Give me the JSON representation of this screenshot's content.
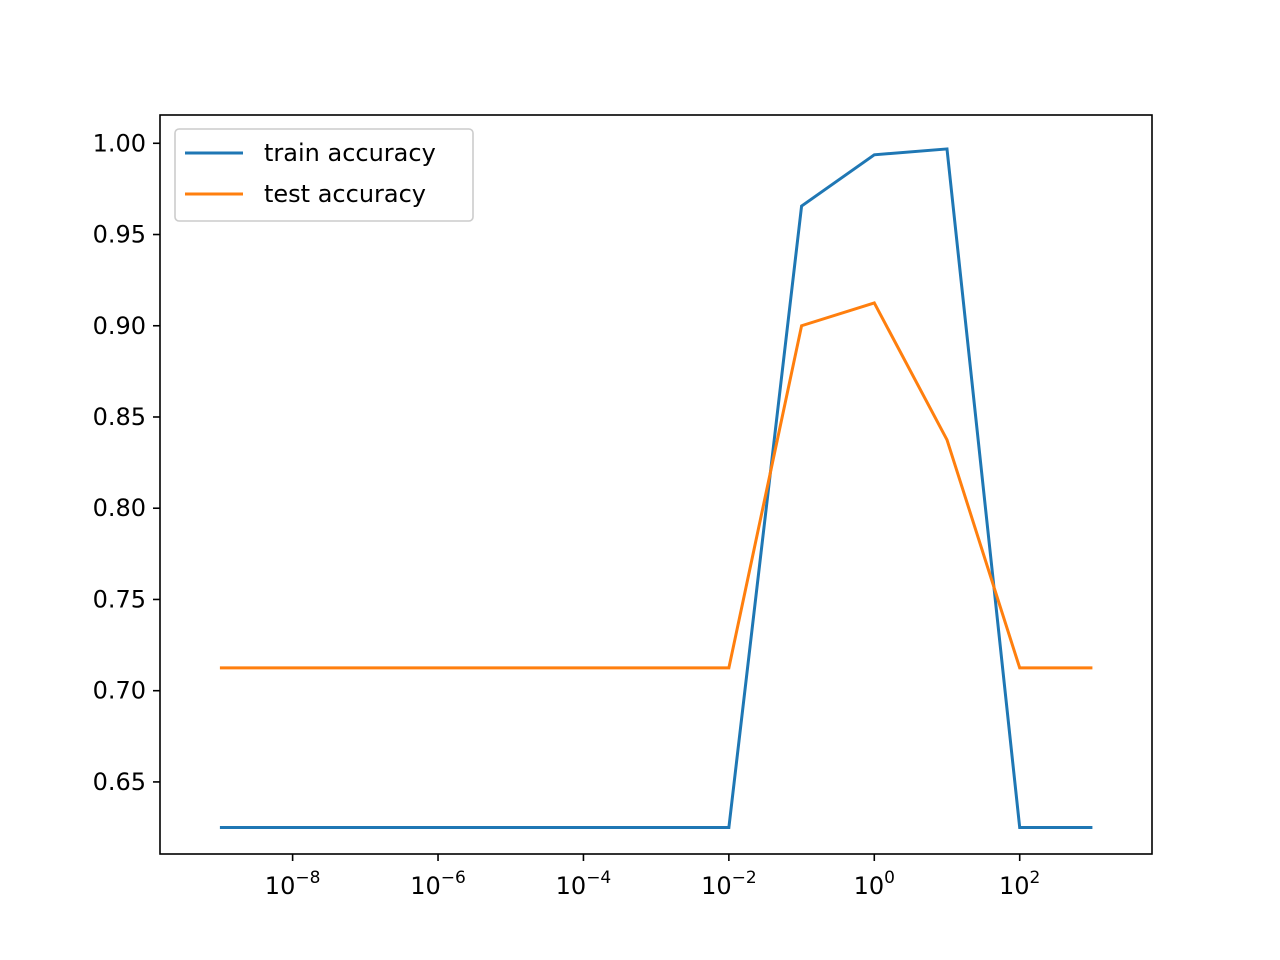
{
  "chart_data": {
    "type": "line",
    "x_scale": "log",
    "x": [
      1e-09,
      1e-08,
      1e-07,
      1e-06,
      1e-05,
      0.0001,
      0.001,
      0.01,
      0.1,
      1,
      10,
      100,
      1000
    ],
    "xlim": [
      1.5e-10,
      6600.0
    ],
    "ylim": [
      0.6105,
      1.0155
    ],
    "x_ticks": [
      {
        "value": 1e-08,
        "base": "10",
        "exp": "−8"
      },
      {
        "value": 1e-06,
        "base": "10",
        "exp": "−6"
      },
      {
        "value": 0.0001,
        "base": "10",
        "exp": "−4"
      },
      {
        "value": 0.01,
        "base": "10",
        "exp": "−2"
      },
      {
        "value": 1,
        "base": "10",
        "exp": "0"
      },
      {
        "value": 100,
        "base": "10",
        "exp": "2"
      }
    ],
    "y_ticks": [
      {
        "value": 0.65,
        "label": "0.65"
      },
      {
        "value": 0.7,
        "label": "0.70"
      },
      {
        "value": 0.75,
        "label": "0.75"
      },
      {
        "value": 0.8,
        "label": "0.80"
      },
      {
        "value": 0.85,
        "label": "0.85"
      },
      {
        "value": 0.9,
        "label": "0.90"
      },
      {
        "value": 0.95,
        "label": "0.95"
      },
      {
        "value": 1.0,
        "label": "1.00"
      }
    ],
    "series": [
      {
        "name": "train accuracy",
        "color": "#1f77b4",
        "values": [
          0.625,
          0.625,
          0.625,
          0.625,
          0.625,
          0.625,
          0.625,
          0.625,
          0.9656,
          0.9937,
          0.9969,
          0.625,
          0.625
        ]
      },
      {
        "name": "test accuracy",
        "color": "#ff7f0e",
        "values": [
          0.7125,
          0.7125,
          0.7125,
          0.7125,
          0.7125,
          0.7125,
          0.7125,
          0.7125,
          0.9,
          0.9125,
          0.8375,
          0.7125,
          0.7125
        ]
      }
    ],
    "grid": false,
    "legend_position": "upper-left",
    "title": "",
    "xlabel": "",
    "ylabel": ""
  }
}
